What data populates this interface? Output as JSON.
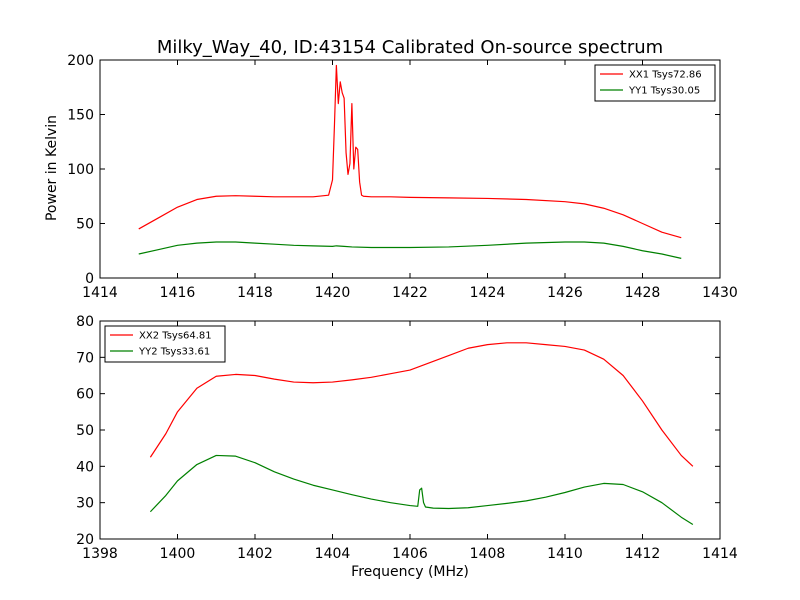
{
  "title": "Milky_Way_40, ID:43154 Calibrated On-source spectrum",
  "colors": {
    "xx": "#ff0000",
    "yy": "#008000",
    "axes": "#000000",
    "background": "#ffffff"
  },
  "chart_data": [
    {
      "type": "line",
      "title": "Milky_Way_40, ID:43154 Calibrated On-source spectrum",
      "xlabel": "",
      "ylabel": "Power in Kelvin",
      "xlim": [
        1414,
        1430
      ],
      "ylim": [
        0,
        200
      ],
      "xticks": [
        1414,
        1416,
        1418,
        1420,
        1422,
        1424,
        1426,
        1428,
        1430
      ],
      "yticks": [
        0,
        50,
        100,
        150,
        200
      ],
      "grid": false,
      "legend_position": "top-right",
      "series": [
        {
          "name": "XX1 Tsys72.86",
          "color": "#ff0000",
          "x": [
            1415.0,
            1415.5,
            1416.0,
            1416.5,
            1417.0,
            1417.5,
            1418.0,
            1418.5,
            1419.0,
            1419.5,
            1419.9,
            1420.0,
            1420.05,
            1420.1,
            1420.15,
            1420.2,
            1420.25,
            1420.3,
            1420.35,
            1420.4,
            1420.45,
            1420.5,
            1420.55,
            1420.6,
            1420.65,
            1420.7,
            1420.75,
            1420.8,
            1421.0,
            1421.5,
            1422.0,
            1423.0,
            1424.0,
            1425.0,
            1426.0,
            1426.5,
            1427.0,
            1427.5,
            1428.0,
            1428.5,
            1429.0
          ],
          "y": [
            45,
            55,
            65,
            72,
            75,
            75.5,
            75,
            74.5,
            74.5,
            74.5,
            76,
            90,
            140,
            195,
            160,
            180,
            170,
            165,
            115,
            95,
            105,
            160,
            100,
            120,
            118,
            88,
            76,
            75,
            74.5,
            74.5,
            74,
            73.5,
            73,
            72,
            70,
            68,
            64,
            58,
            50,
            42,
            37
          ]
        },
        {
          "name": "YY1 Tsys30.05",
          "color": "#008000",
          "x": [
            1415.0,
            1415.5,
            1416.0,
            1416.5,
            1417.0,
            1417.5,
            1418.0,
            1418.5,
            1419.0,
            1419.5,
            1420.0,
            1420.1,
            1420.3,
            1420.5,
            1421.0,
            1422.0,
            1423.0,
            1424.0,
            1425.0,
            1426.0,
            1426.5,
            1427.0,
            1427.5,
            1428.0,
            1428.5,
            1429.0
          ],
          "y": [
            22,
            26,
            30,
            32,
            33,
            33,
            32,
            31,
            30,
            29.5,
            29,
            29.5,
            29,
            28.5,
            28,
            28,
            28.5,
            30,
            32,
            33,
            33,
            32,
            29,
            25,
            22,
            18
          ]
        }
      ]
    },
    {
      "type": "line",
      "title": "",
      "xlabel": "Frequency (MHz)",
      "ylabel": "",
      "xlim": [
        1398,
        1414
      ],
      "ylim": [
        20,
        80
      ],
      "xticks": [
        1398,
        1400,
        1402,
        1404,
        1406,
        1408,
        1410,
        1412,
        1414
      ],
      "yticks": [
        20,
        30,
        40,
        50,
        60,
        70,
        80
      ],
      "grid": false,
      "legend_position": "top-left",
      "series": [
        {
          "name": "XX2 Tsys64.81",
          "color": "#ff0000",
          "x": [
            1399.3,
            1399.7,
            1400.0,
            1400.5,
            1401.0,
            1401.5,
            1402.0,
            1402.5,
            1403.0,
            1403.5,
            1404.0,
            1404.5,
            1405.0,
            1405.5,
            1406.0,
            1406.5,
            1407.0,
            1407.5,
            1408.0,
            1408.5,
            1409.0,
            1409.5,
            1410.0,
            1410.5,
            1411.0,
            1411.5,
            1412.0,
            1412.5,
            1413.0,
            1413.3
          ],
          "y": [
            42.5,
            49,
            55,
            61.5,
            64.8,
            65.3,
            65,
            64,
            63.2,
            63,
            63.2,
            63.8,
            64.5,
            65.5,
            66.5,
            68.5,
            70.5,
            72.5,
            73.5,
            74,
            74,
            73.5,
            73,
            72,
            69.5,
            65,
            58,
            50,
            43,
            40
          ]
        },
        {
          "name": "YY2 Tsys33.61",
          "color": "#008000",
          "x": [
            1399.3,
            1399.7,
            1400.0,
            1400.5,
            1401.0,
            1401.5,
            1402.0,
            1402.5,
            1403.0,
            1403.5,
            1404.0,
            1404.5,
            1405.0,
            1405.5,
            1406.0,
            1406.2,
            1406.25,
            1406.3,
            1406.35,
            1406.4,
            1406.6,
            1407.0,
            1407.5,
            1408.0,
            1408.5,
            1409.0,
            1409.5,
            1410.0,
            1410.5,
            1411.0,
            1411.5,
            1412.0,
            1412.5,
            1413.0,
            1413.3
          ],
          "y": [
            27.5,
            32,
            36,
            40.5,
            43,
            42.8,
            41,
            38.5,
            36.5,
            34.8,
            33.5,
            32.2,
            31,
            30,
            29.2,
            29,
            33.5,
            34,
            30,
            28.8,
            28.5,
            28.4,
            28.6,
            29.2,
            29.8,
            30.5,
            31.5,
            32.8,
            34.3,
            35.3,
            35,
            33,
            30,
            26,
            24
          ]
        }
      ]
    }
  ]
}
